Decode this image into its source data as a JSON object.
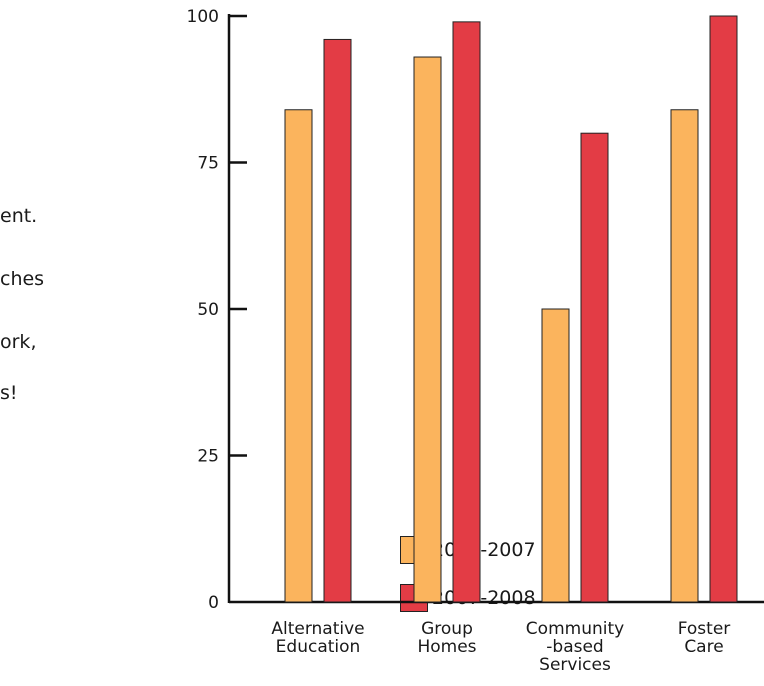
{
  "side_text": [
    "ent.",
    "ches",
    "ork,",
    "s!"
  ],
  "chart_data": {
    "type": "bar",
    "categories": [
      "Alternative Education",
      "Group Homes",
      "Community -based Services",
      "Foster Care"
    ],
    "category_lines": [
      [
        "Alternative",
        "Education"
      ],
      [
        "Group",
        "Homes"
      ],
      [
        "Community",
        "-based",
        "Services"
      ],
      [
        "Foster",
        "Care"
      ]
    ],
    "series": [
      {
        "name": "2006-2007",
        "color": "#fbb45d",
        "values": [
          84,
          93,
          50,
          84
        ]
      },
      {
        "name": "2007-2008",
        "color": "#e33c45",
        "values": [
          96,
          99,
          80,
          100
        ]
      }
    ],
    "yticks": [
      0,
      25,
      50,
      75,
      100
    ],
    "ylim": [
      0,
      100
    ],
    "legend": "bottom-left",
    "grid": false,
    "title": "",
    "xlabel": "",
    "ylabel": ""
  }
}
